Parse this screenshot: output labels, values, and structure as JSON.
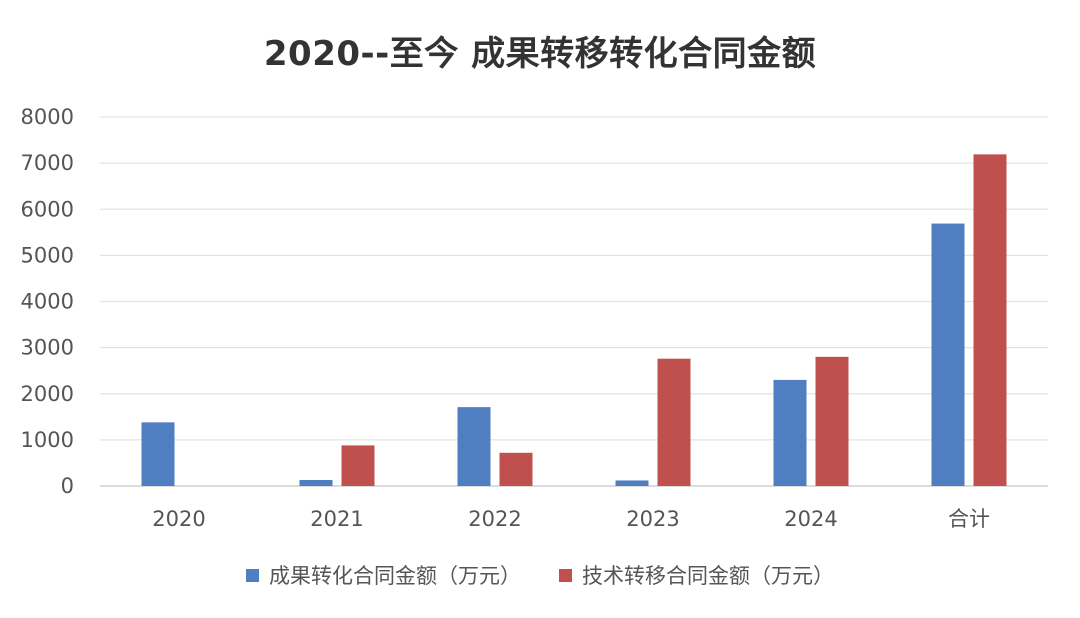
{
  "chart_data": {
    "type": "bar",
    "title": "2020--至今   成果转移转化合同金额",
    "categories": [
      "2020",
      "2021",
      "2022",
      "2023",
      "2024",
      "合计"
    ],
    "series": [
      {
        "name": "成果转化合同金额（万元）",
        "color": "#4f7fc1",
        "values": [
          1380,
          130,
          1710,
          120,
          2300,
          5690
        ]
      },
      {
        "name": "技术转移合同金额（万元）",
        "color": "#c0504d",
        "values": [
          0,
          880,
          720,
          2760,
          2800,
          7190
        ]
      }
    ],
    "yticks": [
      "0",
      "1000",
      "2000",
      "3000",
      "4000",
      "5000",
      "6000",
      "7000",
      "8000"
    ],
    "ylim": [
      0,
      8000
    ],
    "grid": true,
    "legend_position": "bottom"
  }
}
